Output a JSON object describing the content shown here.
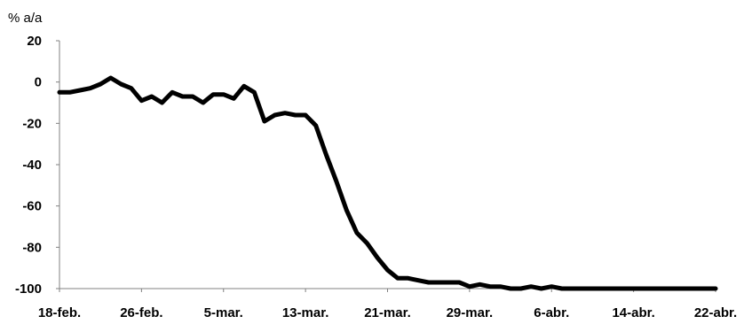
{
  "chart_data": {
    "type": "line",
    "ylabel": "% a/a",
    "ylim": [
      -100,
      20
    ],
    "y_ticks": [
      20,
      0,
      -20,
      -40,
      -60,
      -80,
      -100
    ],
    "y_tick_labels": [
      "20",
      "0",
      "-20",
      "-40",
      "-60",
      "-80",
      "-100"
    ],
    "x_tick_labels": [
      "18-feb.",
      "26-feb.",
      "5-mar.",
      "13-mar.",
      "21-mar.",
      "29-mar.",
      "6-abr.",
      "14-abr.",
      "22-abr."
    ],
    "x_tick_days": [
      0,
      8,
      16,
      24,
      32,
      40,
      48,
      56,
      64
    ],
    "grid": false,
    "legend": "none",
    "line_color": "#000000",
    "series": [
      {
        "x": [
          0,
          1,
          2,
          3,
          4,
          5,
          6,
          7,
          8,
          9,
          10,
          11,
          12,
          13,
          14,
          15,
          16,
          17,
          18,
          19,
          20,
          21,
          22,
          23,
          24,
          25,
          26,
          27,
          28,
          29,
          30,
          31,
          32,
          33,
          34,
          35,
          36,
          37,
          38,
          39,
          40,
          41,
          42,
          43,
          44,
          45,
          46,
          47,
          48,
          49,
          50,
          51,
          52,
          53,
          54,
          55,
          56,
          57,
          58,
          59,
          60,
          61,
          62,
          63,
          64
        ],
        "values": [
          -5,
          -5,
          -4,
          -3,
          -1,
          2,
          -1,
          -3,
          -9,
          -7,
          -10,
          -5,
          -7,
          -7,
          -10,
          -6,
          -6,
          -8,
          -2,
          -5,
          -19,
          -16,
          -15,
          -16,
          -16,
          -21,
          -35,
          -48,
          -62,
          -73,
          -78,
          -85,
          -91,
          -95,
          -95,
          -96,
          -97,
          -97,
          -97,
          -97,
          -99,
          -98,
          -99,
          -99,
          -100,
          -100,
          -99,
          -100,
          -99,
          -100,
          -100,
          -100,
          -100,
          -100,
          -100,
          -100,
          -100,
          -100,
          -100,
          -100,
          -100,
          -100,
          -100,
          -100,
          -100
        ]
      }
    ]
  }
}
